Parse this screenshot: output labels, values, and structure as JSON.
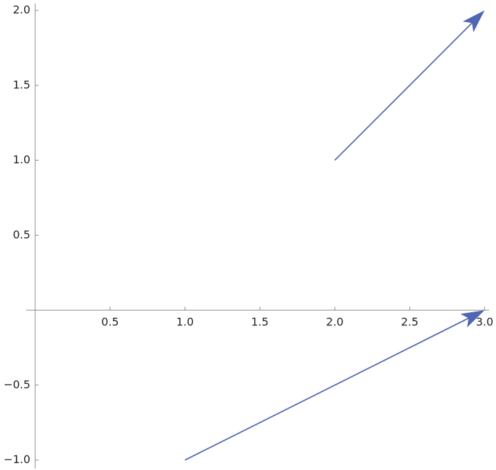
{
  "chart_data": {
    "type": "arrows",
    "arrows": [
      {
        "x": [
          2,
          3
        ],
        "y": [
          1,
          2
        ]
      },
      {
        "x": [
          1,
          3
        ],
        "y": [
          -1,
          0
        ]
      }
    ],
    "color": "#5066b3",
    "xlim": [
      -0.06,
      3.03
    ],
    "ylim": [
      -1.057,
      2.046
    ],
    "xticks": [
      0.5,
      {
        "value": 1,
        "label": "1.0"
      },
      1.5,
      {
        "value": 2,
        "label": "2.0"
      },
      2.5,
      {
        "value": 3,
        "label": "3.0"
      }
    ],
    "yticks": [
      {
        "value": -1,
        "label": "−1.0"
      },
      {
        "value": -0.5,
        "label": "−0.5"
      },
      0.5,
      {
        "value": 1,
        "label": "1.0"
      },
      1.5,
      {
        "value": 2,
        "label": "2.0"
      }
    ]
  }
}
